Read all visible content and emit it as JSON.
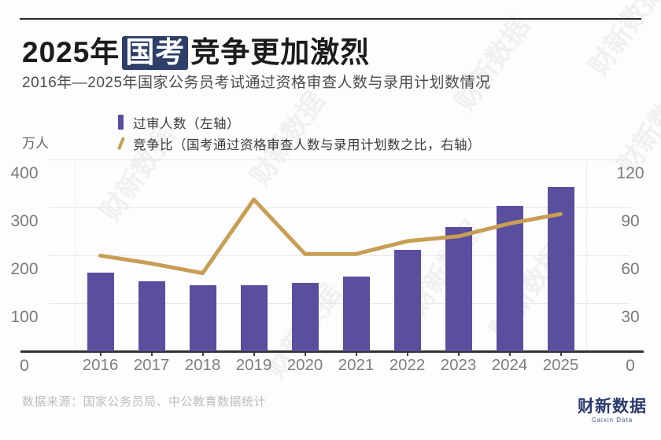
{
  "header": {
    "title_prefix": "2025年",
    "title_highlight": "国考",
    "title_suffix": "竞争更加激烈",
    "subtitle": "2016年—2025年国家公务员考试通过资格审查人数与录用计划数情况"
  },
  "legend": {
    "bar_label": "过审人数（左轴）",
    "line_label": "竞争比（国考通过资格审查人数与录用计划数之比，右轴）"
  },
  "chart_data": {
    "type": "bar",
    "title": "2025年国考竞争更加激烈",
    "subtitle": "2016年—2025年国家公务员考试通过资格审查人数与录用计划数情况",
    "categories": [
      "2016",
      "2017",
      "2018",
      "2019",
      "2020",
      "2021",
      "2022",
      "2023",
      "2024",
      "2025"
    ],
    "series": [
      {
        "name": "过审人数（左轴）",
        "type": "bar",
        "axis": "left",
        "unit": "万人",
        "values": [
          165,
          147,
          139,
          138,
          143,
          156,
          212,
          260,
          303,
          342
        ]
      },
      {
        "name": "竞争比（国考通过资格审查人数与录用计划数之比，右轴）",
        "type": "line",
        "axis": "right",
        "values": [
          60,
          55,
          49,
          95,
          61,
          61,
          69,
          72,
          80,
          86
        ]
      }
    ],
    "left_axis": {
      "unit": "万人",
      "ticks": [
        400,
        300,
        200,
        100,
        0
      ],
      "max": 400,
      "min": 0
    },
    "right_axis": {
      "ticks": [
        120,
        90,
        60,
        30,
        0
      ],
      "max": 120,
      "min": 0
    },
    "grid": true,
    "legend_position": "top"
  },
  "colors": {
    "bar": "#5a4e9e",
    "line": "#c79e54",
    "highlight_box": "#2d3e68",
    "logo": "#2b3a6e"
  },
  "footer": {
    "source": "数据来源：国家公务员局、中公教育数据统计"
  },
  "branding": {
    "logo_main": "财新数据",
    "logo_sub": "Caixin Data",
    "watermark": "财新数据"
  }
}
